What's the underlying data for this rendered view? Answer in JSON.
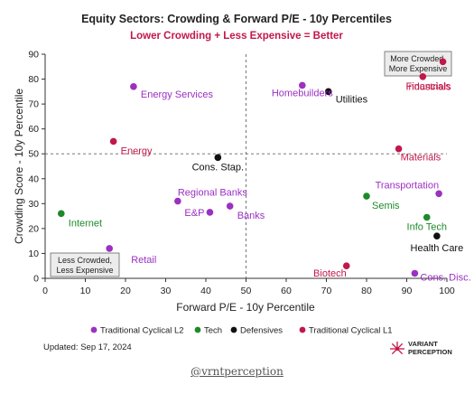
{
  "chart_data": {
    "type": "scatter",
    "title": "Equity Sectors: Crowding & Forward P/E - 10y Percentiles",
    "subtitle": "Lower Crowding + Less Expensive = Better",
    "xlabel": "Forward P/E - 10y Percentile",
    "ylabel": "Crowding Score - 10y Percentile",
    "xlim": [
      0,
      100
    ],
    "ylim": [
      0,
      90
    ],
    "xticks": [
      0,
      10,
      20,
      30,
      40,
      50,
      60,
      70,
      80,
      90,
      100
    ],
    "yticks": [
      0,
      10,
      20,
      30,
      40,
      50,
      60,
      70,
      80,
      90
    ],
    "reference_lines": {
      "x": 50,
      "y": 50,
      "style": "dashed"
    },
    "grid": false,
    "legend_position": "bottom",
    "series": [
      {
        "name": "Traditional Cyclical L2",
        "color": "#9b30c2",
        "points": [
          {
            "label": "Energy Services",
            "x": 22,
            "y": 77
          },
          {
            "label": "Homebuilders",
            "x": 64,
            "y": 77.5
          },
          {
            "label": "Regional Banks",
            "x": 33,
            "y": 31
          },
          {
            "label": "E&P",
            "x": 41,
            "y": 26.5
          },
          {
            "label": "Banks",
            "x": 46,
            "y": 29
          },
          {
            "label": "Retail",
            "x": 16,
            "y": 12
          },
          {
            "label": "Transportation",
            "x": 98,
            "y": 34
          },
          {
            "label": "Cons. Disc.",
            "x": 92,
            "y": 2
          }
        ]
      },
      {
        "name": "Tech",
        "color": "#1e8a2a",
        "points": [
          {
            "label": "Internet",
            "x": 4,
            "y": 26
          },
          {
            "label": "Semis",
            "x": 80,
            "y": 33
          },
          {
            "label": "Info Tech",
            "x": 95,
            "y": 24.5
          }
        ]
      },
      {
        "name": "Defensives",
        "color": "#111111",
        "points": [
          {
            "label": "Utilities",
            "x": 70.5,
            "y": 75
          },
          {
            "label": "Cons. Stap.",
            "x": 43,
            "y": 48.5
          },
          {
            "label": "Health Care",
            "x": 97.5,
            "y": 17
          }
        ]
      },
      {
        "name": "Traditional Cyclical L1",
        "color": "#c2174a",
        "points": [
          {
            "label": "Financials",
            "x": 94,
            "y": 81
          },
          {
            "label": "Industrials",
            "x": 99,
            "y": 87
          },
          {
            "label": "Energy",
            "x": 17,
            "y": 55
          },
          {
            "label": "Materials",
            "x": 88,
            "y": 52
          },
          {
            "label": "Biotech",
            "x": 75,
            "y": 5
          }
        ]
      }
    ],
    "annotations": {
      "top_right": [
        "More Crowded,",
        "More Expensive"
      ],
      "bottom_left": [
        "Less Crowded,",
        "Less Expensive"
      ]
    }
  },
  "footer": {
    "updated": "Updated: Sep 17, 2024",
    "brand_line1": "VARIANT",
    "brand_line2": "PERCEPTION",
    "handle": "@vrntperception"
  }
}
